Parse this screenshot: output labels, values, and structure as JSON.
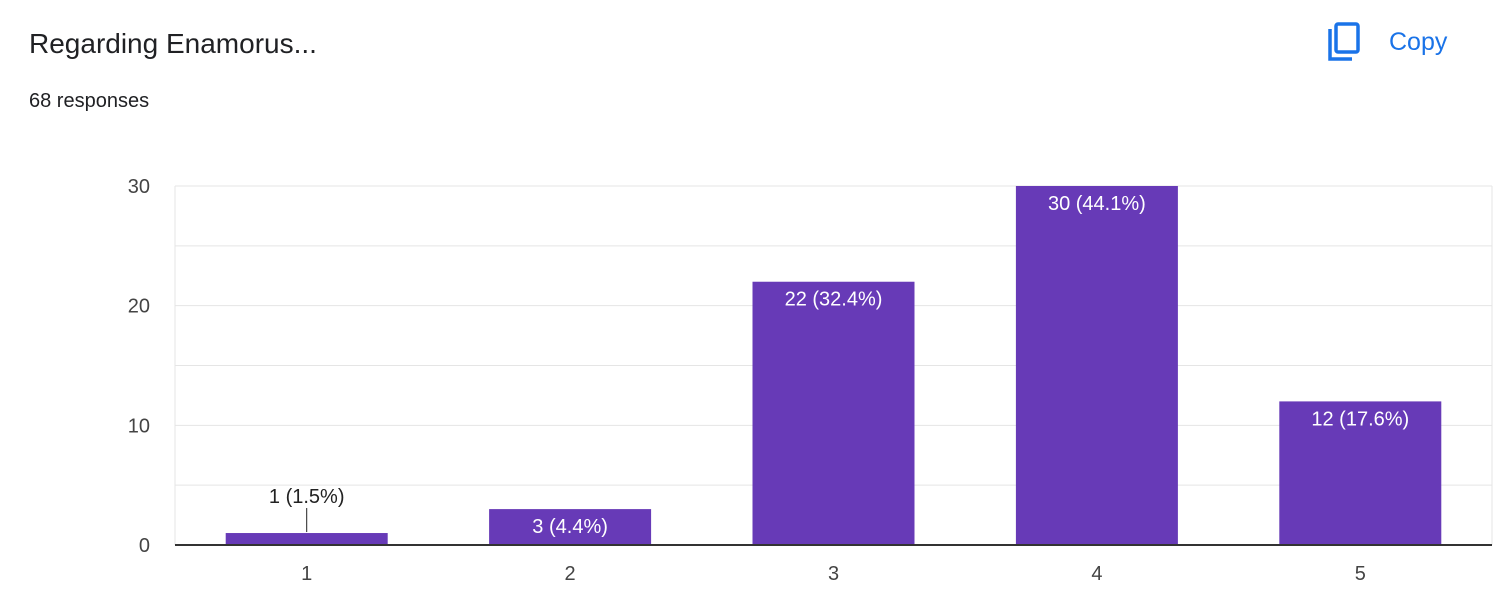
{
  "header": {
    "title": "Regarding Enamorus...",
    "responses": "68 responses",
    "copy_label": "Copy",
    "copy_icon": "copy-icon"
  },
  "colors": {
    "bar": "#673ab7",
    "accent": "#1a73e8",
    "grid": "#e5e5e5",
    "axis": "#333333"
  },
  "chart_data": {
    "type": "bar",
    "categories": [
      "1",
      "2",
      "3",
      "4",
      "5"
    ],
    "values": [
      1,
      3,
      22,
      30,
      12
    ],
    "data_labels": [
      "1 (1.5%)",
      "3 (4.4%)",
      "22 (32.4%)",
      "30 (44.1%)",
      "12 (17.6%)"
    ],
    "yticks": [
      0,
      10,
      20,
      30
    ],
    "ylim": [
      0,
      30
    ],
    "grid": true
  }
}
